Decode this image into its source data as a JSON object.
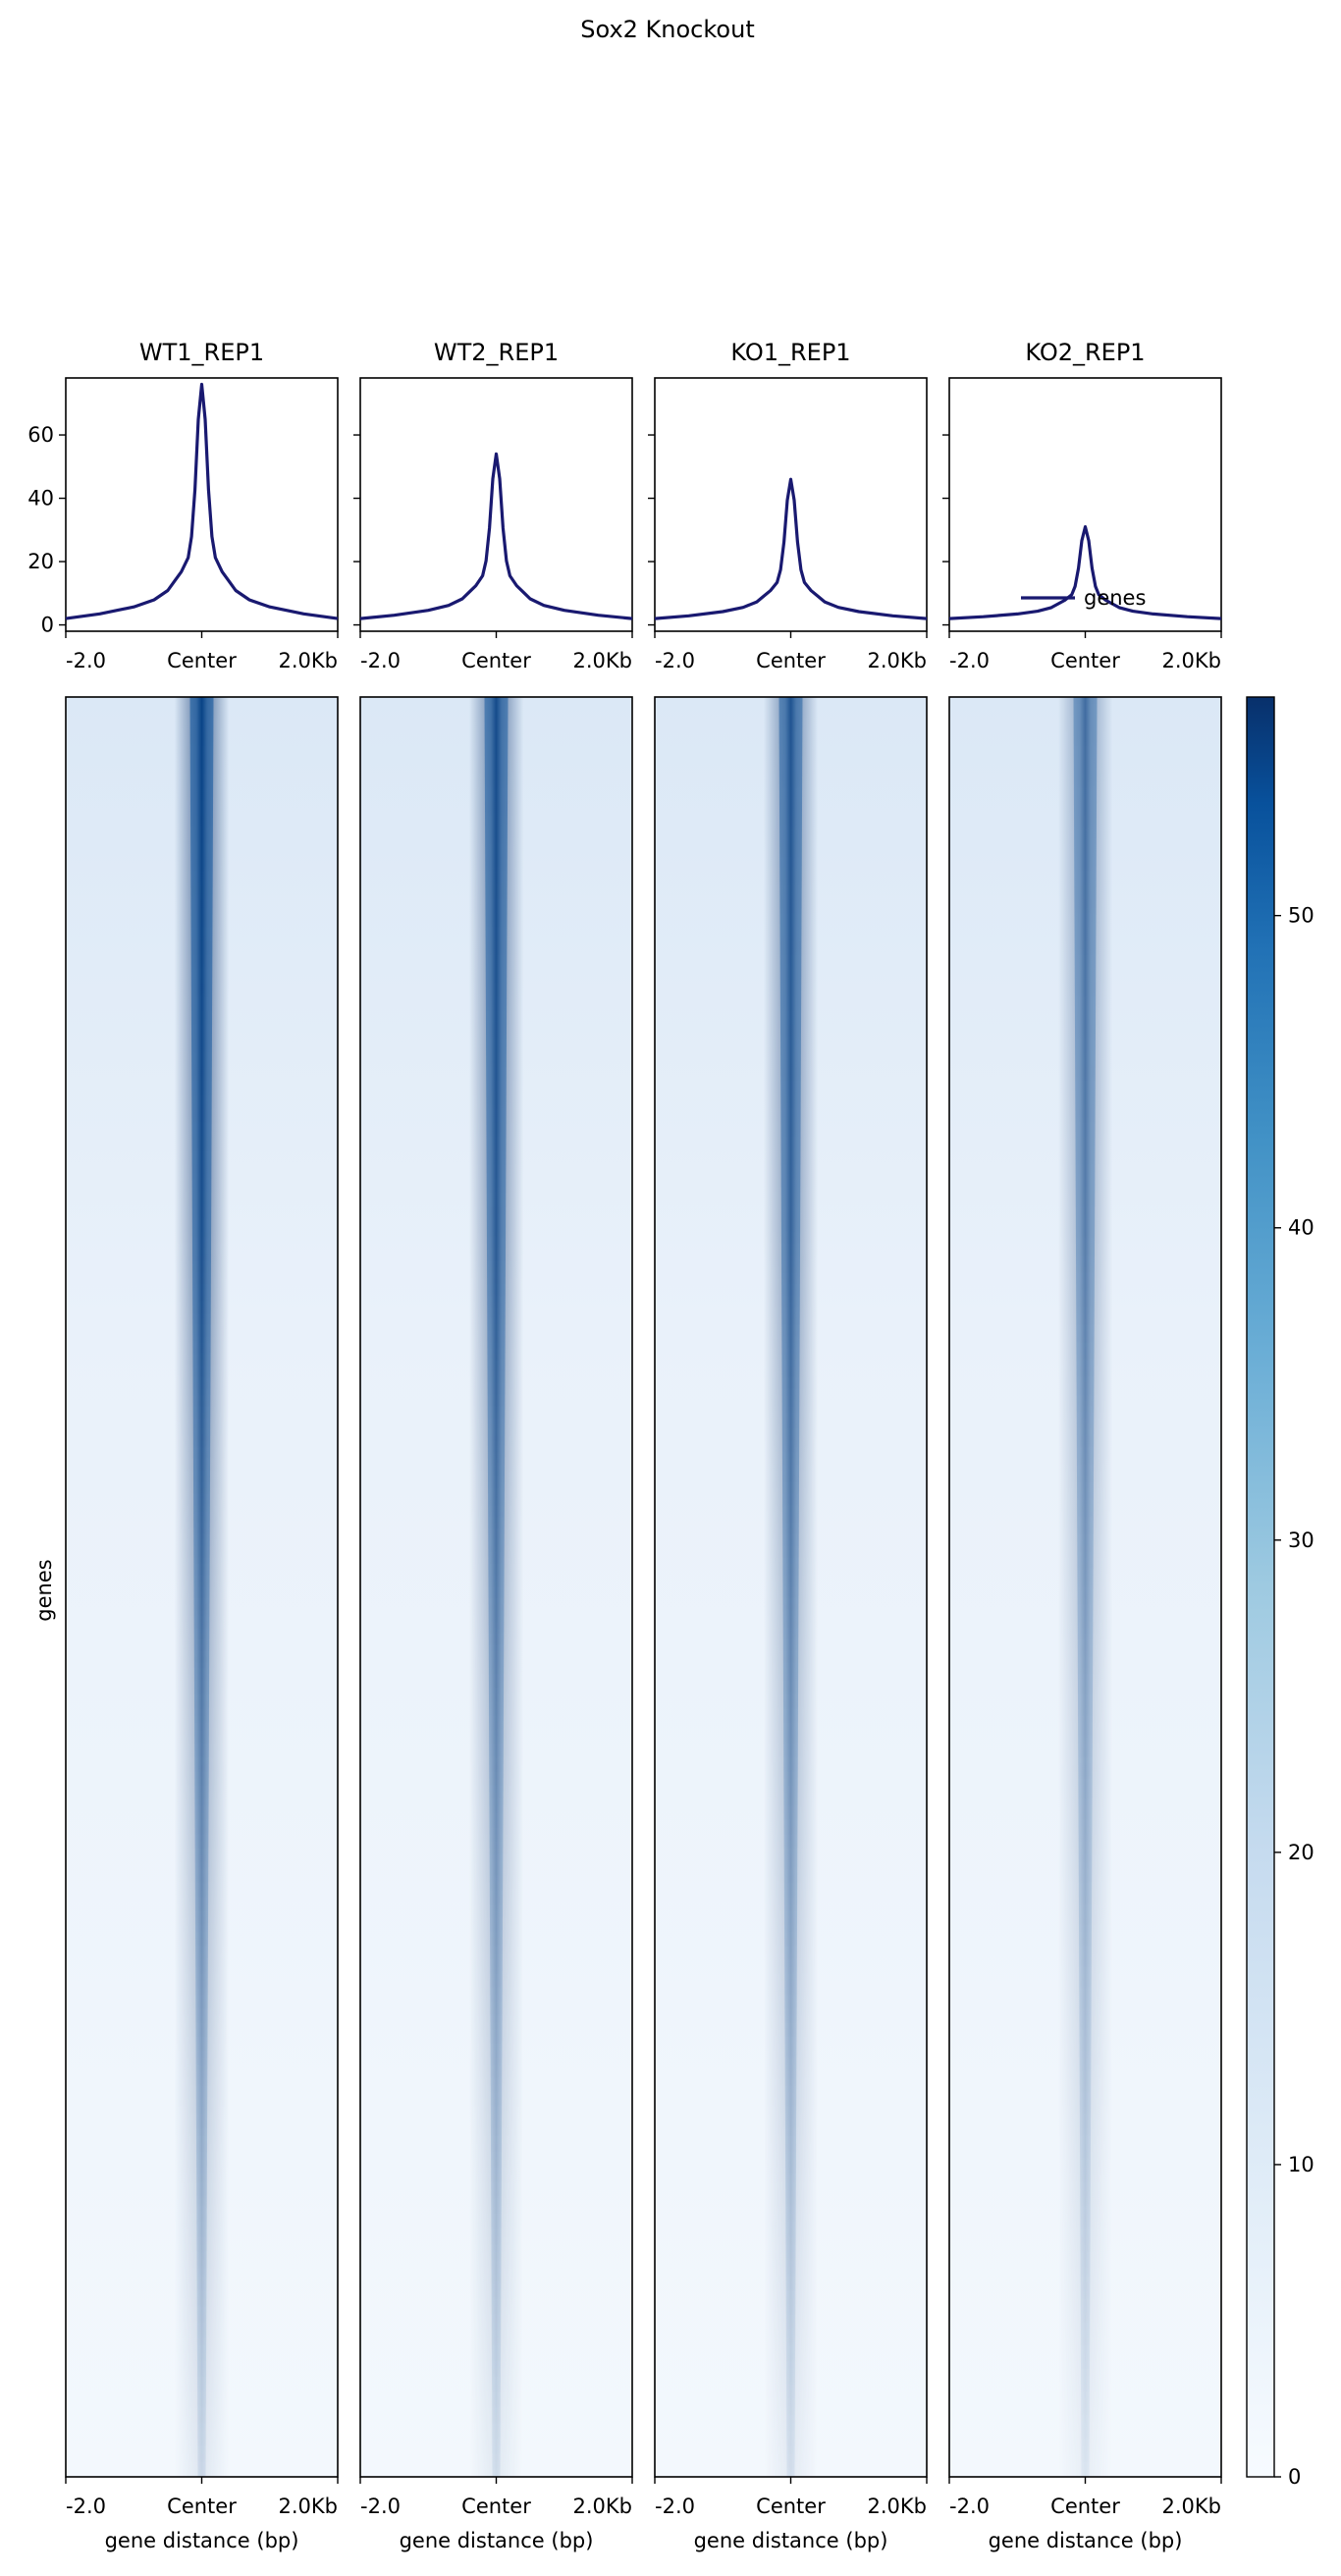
{
  "chart_data": {
    "type": "heatmap",
    "title": "Sox2 Knockout",
    "region_label": "genes",
    "x_ticks": [
      "-2.0",
      "Center",
      "2.0Kb"
    ],
    "x_label": "gene distance (bp)",
    "profile": {
      "ylim": [
        -2,
        78
      ],
      "yticks": [
        0,
        20,
        40,
        60
      ],
      "line_color": "#191970",
      "legend": "genes",
      "legend_placement": "lower-right of last panel"
    },
    "colorbar": {
      "colormap": "Blues",
      "ylim": [
        0,
        57
      ],
      "ticks": [
        0,
        10,
        20,
        30,
        40,
        50
      ]
    },
    "samples": [
      {
        "name": "WT1_REP1",
        "peak": 76,
        "base": 2,
        "strength": 1.0
      },
      {
        "name": "WT2_REP1",
        "peak": 54,
        "base": 2,
        "strength": 0.88
      },
      {
        "name": "KO1_REP1",
        "peak": 46,
        "base": 2,
        "strength": 0.8
      },
      {
        "name": "KO2_REP1",
        "peak": 31,
        "base": 2,
        "strength": 0.6
      }
    ],
    "profile_x": [
      -2000,
      -1500,
      -1000,
      -700,
      -500,
      -400,
      -300,
      -200,
      -150,
      -100,
      -50,
      0,
      50,
      100,
      150,
      200,
      300,
      400,
      500,
      700,
      1000,
      1500,
      2000
    ],
    "profile_shape": [
      0.0,
      0.02,
      0.05,
      0.08,
      0.12,
      0.16,
      0.2,
      0.26,
      0.35,
      0.55,
      0.85,
      1.0,
      0.85,
      0.55,
      0.35,
      0.26,
      0.2,
      0.16,
      0.12,
      0.08,
      0.05,
      0.02,
      0.0
    ]
  }
}
